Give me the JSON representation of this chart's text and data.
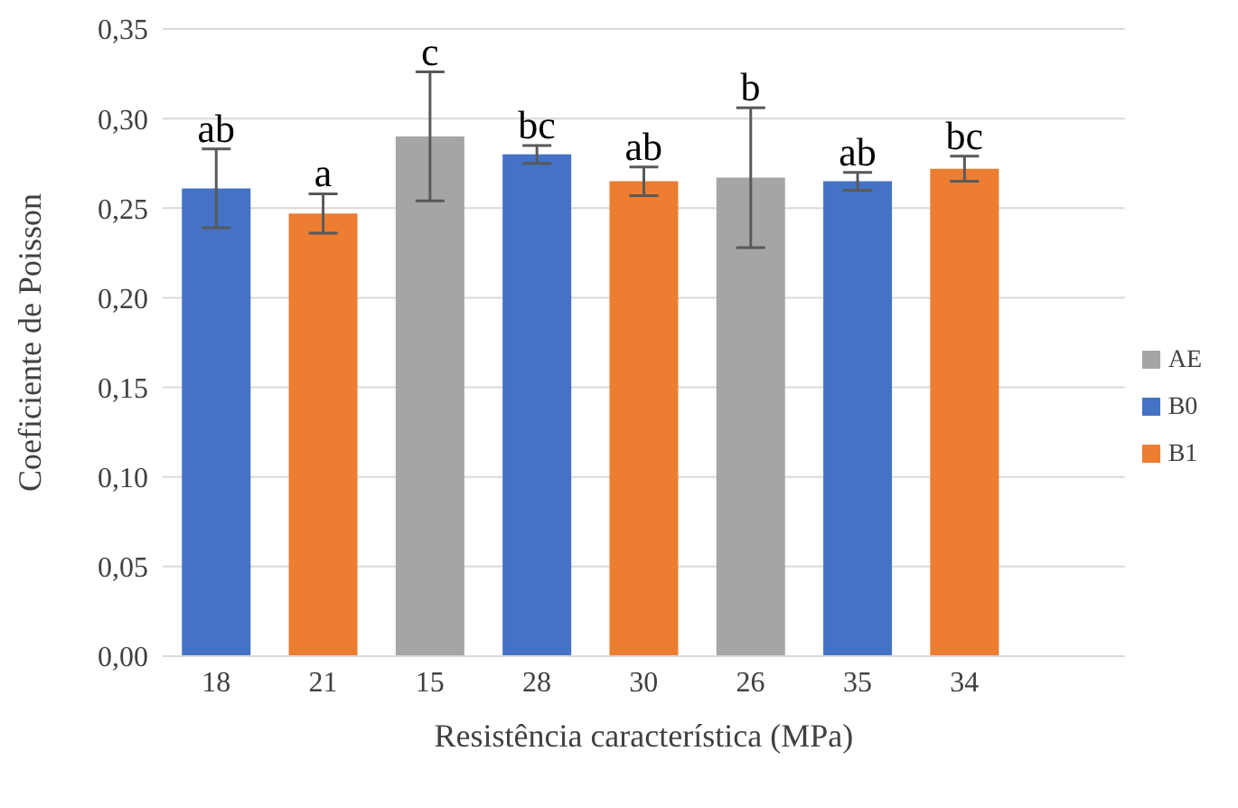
{
  "chart_data": {
    "type": "bar",
    "xlabel": "Resistência característica (MPa)",
    "ylabel": "Coeficiente de Poisson",
    "categories": [
      "18",
      "21",
      "15",
      "28",
      "30",
      "26",
      "35",
      "34",
      null
    ],
    "stacked": true,
    "series": [
      {
        "name": "B0",
        "color": "#4472c4",
        "values": [
          0.261,
          null,
          null,
          0.28,
          null,
          null,
          0.265,
          null,
          null
        ],
        "errors": [
          0.022,
          null,
          null,
          0.005,
          null,
          null,
          0.005,
          null,
          null
        ]
      },
      {
        "name": "B1",
        "color": "#ed7d31",
        "values": [
          null,
          0.247,
          null,
          null,
          0.265,
          null,
          null,
          0.272,
          null
        ],
        "errors": [
          null,
          0.011,
          null,
          null,
          0.008,
          null,
          null,
          0.007,
          null
        ]
      },
      {
        "name": "AE",
        "color": "#a5a5a5",
        "values": [
          null,
          null,
          0.29,
          null,
          null,
          0.267,
          null,
          null,
          null
        ],
        "errors": [
          null,
          null,
          0.036,
          null,
          null,
          0.039,
          null,
          null,
          null
        ]
      }
    ],
    "ylim": [
      0,
      0.35
    ],
    "yticks": [
      {
        "value": 0,
        "label": "0,00"
      },
      {
        "value": 0.05,
        "label": "0,05"
      },
      {
        "value": 0.1,
        "label": "0,10"
      },
      {
        "value": 0.15,
        "label": "0,15"
      },
      {
        "value": 0.2,
        "label": "0,20"
      },
      {
        "value": 0.25,
        "label": "0,25"
      },
      {
        "value": 0.3,
        "label": "0,30"
      },
      {
        "value": 0.35,
        "label": "0,35"
      }
    ],
    "grid": "y",
    "legend": "right",
    "annotations": [
      {
        "text": "ab",
        "x": "18",
        "y": 0.283
      },
      {
        "text": "a",
        "x": "21",
        "y": 0.258
      },
      {
        "text": "c",
        "x": "15",
        "y": 0.326
      },
      {
        "text": "bc",
        "x": "28",
        "y": 0.285
      },
      {
        "text": "ab",
        "x": "30",
        "y": 0.273
      },
      {
        "text": "b",
        "x": "26",
        "y": 0.306
      },
      {
        "text": "ab",
        "x": "35",
        "y": 0.27
      },
      {
        "text": "bc",
        "x": "34",
        "y": 0.279
      }
    ]
  }
}
